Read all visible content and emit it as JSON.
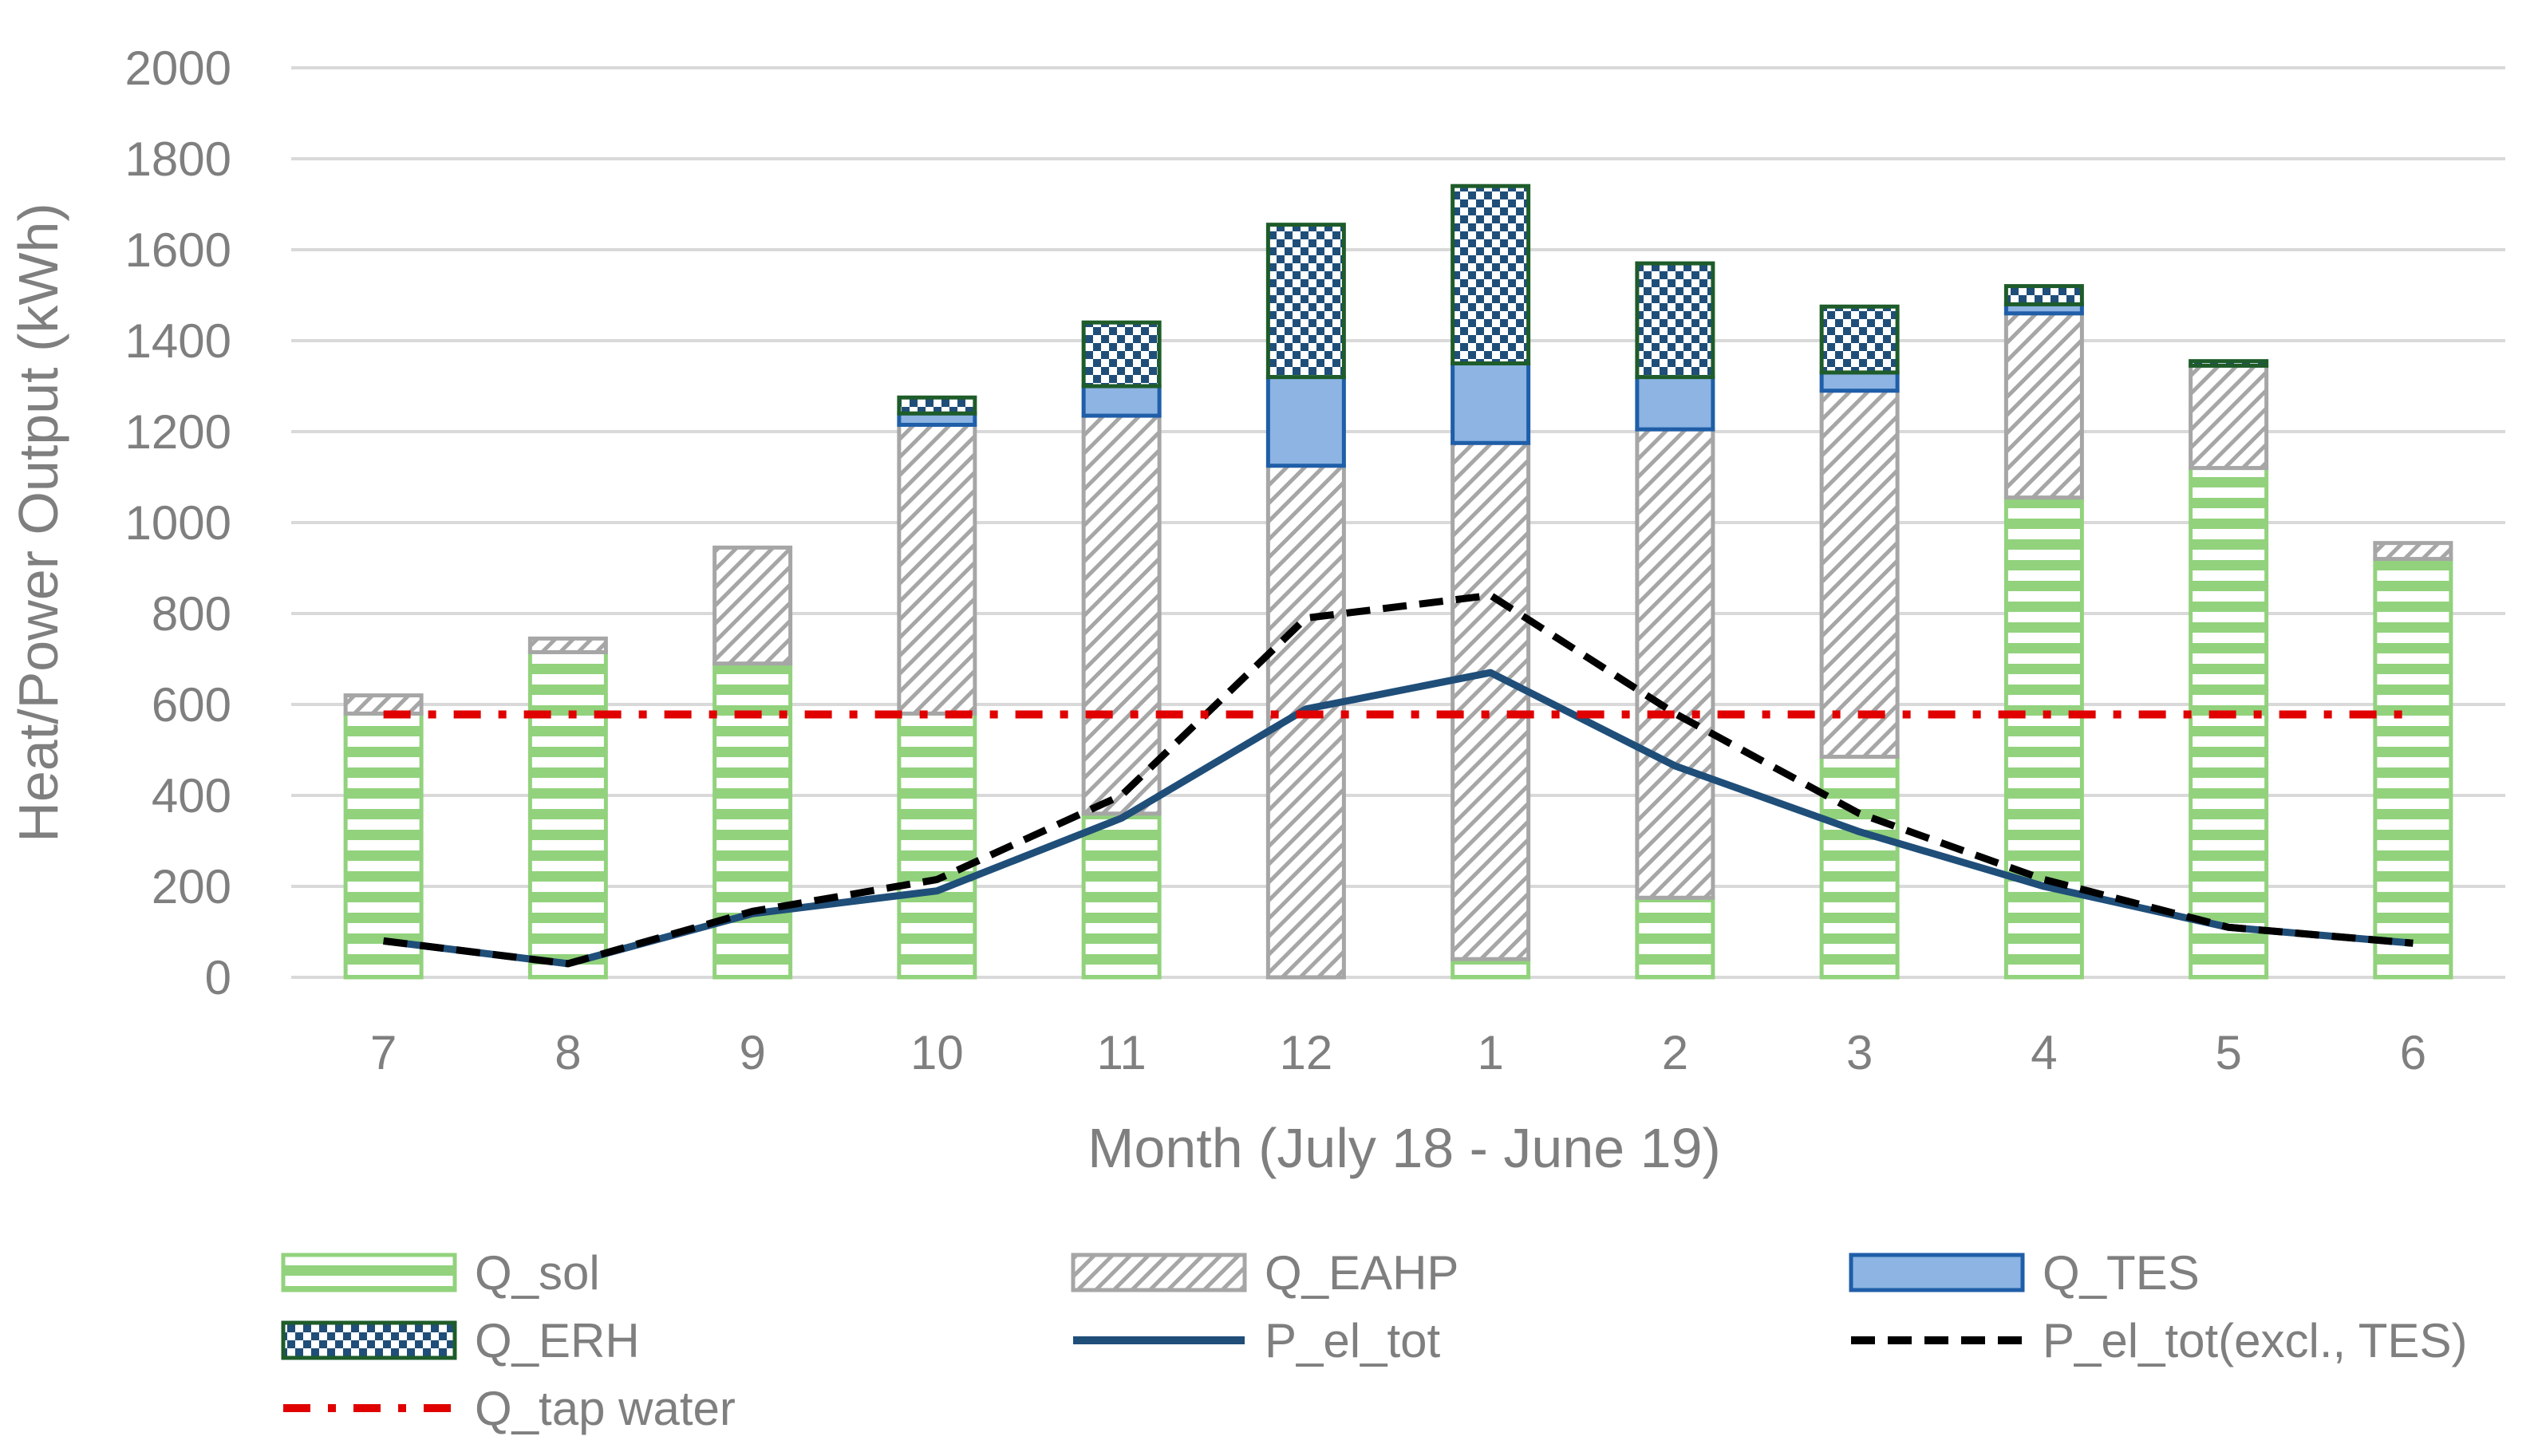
{
  "chart_data": {
    "type": "bar",
    "stacked": true,
    "title": "",
    "xlabel": "Month (July 18 - June 19)",
    "ylabel": "Heat/Power Output (kWh)",
    "ylim": [
      0,
      2000
    ],
    "yticks": [
      0,
      200,
      400,
      600,
      800,
      1000,
      1200,
      1400,
      1600,
      1800,
      2000
    ],
    "grid": true,
    "categories": [
      "7",
      "8",
      "9",
      "10",
      "11",
      "12",
      "1",
      "2",
      "3",
      "4",
      "5",
      "6"
    ],
    "series": [
      {
        "name": "Q_sol",
        "type": "bar",
        "pattern": "horizontal-stripes",
        "color": "#92d27d",
        "values": [
          580,
          715,
          690,
          580,
          360,
          0,
          40,
          175,
          485,
          1055,
          1120,
          920
        ]
      },
      {
        "name": "Q_EAHP",
        "type": "bar",
        "pattern": "diagonal-hatch",
        "color": "#a6a6a6",
        "values": [
          40,
          30,
          255,
          635,
          875,
          1125,
          1135,
          1030,
          805,
          405,
          225,
          35
        ]
      },
      {
        "name": "Q_TES",
        "type": "bar",
        "pattern": "solid",
        "color": "#8db4e2",
        "stroke": "#1f5ea8",
        "values": [
          0,
          0,
          0,
          25,
          65,
          195,
          175,
          115,
          40,
          20,
          0,
          0
        ]
      },
      {
        "name": "Q_ERH",
        "type": "bar",
        "pattern": "checker",
        "color": "#1f4e79",
        "stroke": "#1e5c2a",
        "values": [
          0,
          0,
          0,
          35,
          140,
          335,
          390,
          250,
          145,
          40,
          10,
          0
        ]
      },
      {
        "name": "P_el_tot",
        "type": "line",
        "style": "solid",
        "color": "#1f4e79",
        "values": [
          80,
          30,
          140,
          190,
          350,
          590,
          670,
          465,
          320,
          200,
          110,
          75
        ]
      },
      {
        "name": "P_el_tot(excl., TES)",
        "type": "line",
        "style": "dashed",
        "color": "#000000",
        "values": [
          80,
          30,
          145,
          215,
          400,
          790,
          840,
          580,
          360,
          215,
          110,
          75
        ]
      },
      {
        "name": "Q_tap water",
        "type": "line",
        "style": "dash-dot",
        "color": "#e00000",
        "values": [
          578,
          578,
          578,
          578,
          578,
          578,
          578,
          578,
          578,
          578,
          578,
          578
        ]
      }
    ],
    "legend": {
      "position": "bottom",
      "entries": [
        "Q_sol",
        "Q_EAHP",
        "Q_TES",
        "Q_ERH",
        "P_el_tot",
        "P_el_tot(excl., TES)",
        "Q_tap water"
      ]
    }
  }
}
